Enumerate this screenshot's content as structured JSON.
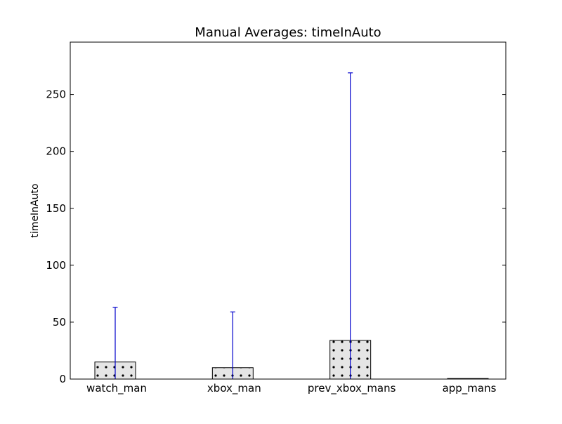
{
  "chart_data": {
    "type": "bar",
    "title": "Manual Averages: timeInAuto",
    "xlabel": "",
    "ylabel": "timeInAuto",
    "categories": [
      "watch_man",
      "xbox_man",
      "prev_xbox_mans",
      "app_mans"
    ],
    "values": [
      15,
      10,
      34,
      0
    ],
    "error_bars": [
      {
        "lower": 0,
        "upper": 63
      },
      {
        "lower": 0,
        "upper": 59
      },
      {
        "lower": 0,
        "upper": 269
      },
      {
        "lower": 0,
        "upper": 0
      }
    ],
    "ylim": [
      0,
      296
    ],
    "yticks": [
      0,
      50,
      100,
      150,
      200,
      250
    ],
    "grid": false,
    "bar_hatch": "dots",
    "colors": {
      "bar_fill": "#e5e5e5",
      "bar_edge": "#000000",
      "error_bar": "#0000cc",
      "axes": "#000000"
    }
  }
}
